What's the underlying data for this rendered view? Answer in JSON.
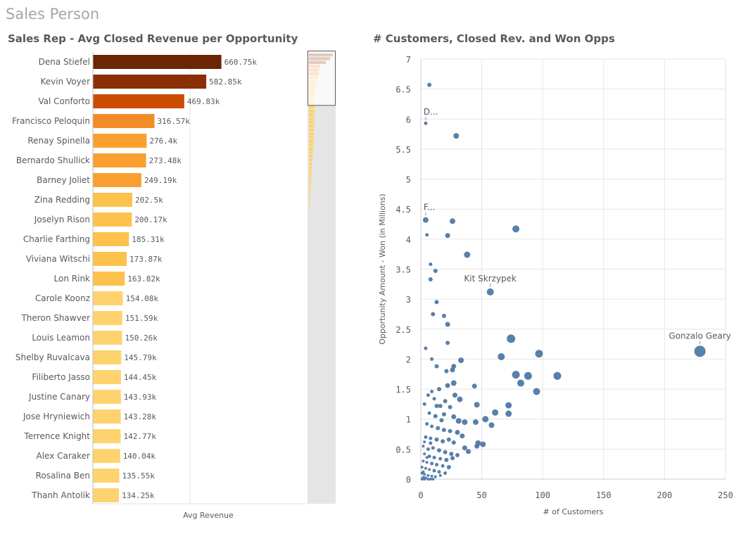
{
  "page": {
    "title": "Sales Person"
  },
  "colors": {
    "bar_ramp": [
      "#6b2503",
      "#8a2e04",
      "#cc4c02",
      "#f28c28",
      "#f9a030",
      "#fdc14d",
      "#fed36f"
    ],
    "scatter_point": "#4e79a7",
    "grid": "#e6e6e6",
    "scroll_track": "#e5e5e5"
  },
  "chart_data": [
    {
      "type": "bar",
      "orientation": "horizontal",
      "title": "Sales Rep - Avg Closed Revenue per Opportunity",
      "xlabel": "Avg Revenue",
      "ylabel": "",
      "xlim": [
        0,
        1100
      ],
      "grid": true,
      "value_unit": "k",
      "categories": [
        "Dena Stiefel",
        "Kevin Voyer",
        "Val Conforto",
        "Francisco Peloquin",
        "Renay Spinella",
        "Bernardo Shullick",
        "Barney Joliet",
        "Zina Redding",
        "Joselyn Rison",
        "Charlie Farthing",
        "Viviana Witschi",
        "Lon Rink",
        "Carole Koonz",
        "Theron Shawver",
        "Louis Leamon",
        "Shelby Ruvalcava",
        "Filiberto Jasso",
        "Justine Canary",
        "Jose Hryniewich",
        "Terrence Knight",
        "Alex Caraker",
        "Rosalina Ben",
        "Thanh Antolik"
      ],
      "values": [
        660.75,
        582.85,
        469.83,
        316.57,
        276.4,
        273.48,
        249.19,
        202.5,
        200.17,
        185.31,
        173.87,
        163.82,
        154.08,
        151.59,
        150.26,
        145.79,
        144.45,
        143.93,
        143.28,
        142.77,
        140.04,
        135.55,
        134.25
      ],
      "value_labels": [
        "660.75k",
        "582.85k",
        "469.83k",
        "316.57k",
        "276.4k",
        "273.48k",
        "249.19k",
        "202.5k",
        "200.17k",
        "185.31k",
        "173.87k",
        "163.82k",
        "154.08k",
        "151.59k",
        "150.26k",
        "145.79k",
        "144.45k",
        "143.93k",
        "143.28k",
        "142.77k",
        "140.04k",
        "135.55k",
        "134.25k"
      ],
      "color_index": [
        0,
        1,
        2,
        3,
        4,
        4,
        4,
        5,
        5,
        5,
        5,
        5,
        6,
        6,
        6,
        6,
        6,
        6,
        6,
        6,
        6,
        6,
        6
      ],
      "scrollbar_visible_fraction": 0.12,
      "scrollbar_overview": [
        1.0,
        0.88,
        0.71,
        0.48,
        0.42,
        0.41,
        0.38,
        0.31,
        0.3,
        0.28,
        0.26,
        0.25,
        0.23,
        0.23,
        0.23,
        0.22,
        0.22,
        0.22,
        0.22,
        0.22,
        0.21,
        0.21,
        0.2,
        0.19,
        0.18,
        0.17,
        0.16,
        0.15,
        0.14,
        0.13,
        0.12,
        0.11,
        0.1,
        0.09,
        0.08,
        0.07,
        0.06,
        0.05,
        0.04,
        0.03,
        0.02,
        0.01
      ]
    },
    {
      "type": "scatter",
      "title": "# Customers, Closed Rev. and Won Opps",
      "xlabel": "# of Customers",
      "ylabel": "Opportunity Amount - Won (in Millions)",
      "xlim": [
        0,
        250
      ],
      "ylim": [
        0,
        7
      ],
      "xticks": [
        0,
        50,
        100,
        150,
        200,
        250
      ],
      "yticks": [
        0,
        0.5,
        1,
        1.5,
        2,
        2.5,
        3,
        3.5,
        4,
        4.5,
        5,
        5.5,
        6,
        6.5,
        7
      ],
      "ytick_labels": [
        "0",
        "0.5",
        "1",
        "1.5",
        "2",
        "2.5",
        "3",
        "3.5",
        "4",
        "4.5",
        "5",
        "5.5",
        "6",
        "6.5",
        "7"
      ],
      "grid": true,
      "points": [
        {
          "x": 229,
          "y": 2.13,
          "size": 8,
          "label": "Gonzalo Geary"
        },
        {
          "x": 57,
          "y": 3.12,
          "size": 5,
          "label": "Kit Skrzypek"
        },
        {
          "x": 4,
          "y": 5.93,
          "size": 2.5,
          "label": "D..."
        },
        {
          "x": 4,
          "y": 4.32,
          "size": 4,
          "label": "F..."
        },
        {
          "x": 7,
          "y": 6.57,
          "size": 3
        },
        {
          "x": 29,
          "y": 5.72,
          "size": 4
        },
        {
          "x": 78,
          "y": 4.17,
          "size": 5
        },
        {
          "x": 26,
          "y": 4.3,
          "size": 4
        },
        {
          "x": 22,
          "y": 4.06,
          "size": 3.5
        },
        {
          "x": 38,
          "y": 3.74,
          "size": 4.5
        },
        {
          "x": 5,
          "y": 4.07,
          "size": 2.5
        },
        {
          "x": 8,
          "y": 3.58,
          "size": 2.5
        },
        {
          "x": 12,
          "y": 3.47,
          "size": 3
        },
        {
          "x": 8,
          "y": 3.33,
          "size": 3
        },
        {
          "x": 13,
          "y": 2.95,
          "size": 3
        },
        {
          "x": 10,
          "y": 2.75,
          "size": 3
        },
        {
          "x": 19,
          "y": 2.72,
          "size": 3
        },
        {
          "x": 22,
          "y": 2.58,
          "size": 3.5
        },
        {
          "x": 74,
          "y": 2.34,
          "size": 6
        },
        {
          "x": 22,
          "y": 2.27,
          "size": 3
        },
        {
          "x": 4,
          "y": 2.18,
          "size": 2.5
        },
        {
          "x": 97,
          "y": 2.09,
          "size": 5.5
        },
        {
          "x": 66,
          "y": 2.04,
          "size": 5
        },
        {
          "x": 33,
          "y": 1.98,
          "size": 4
        },
        {
          "x": 9,
          "y": 2.0,
          "size": 2.5
        },
        {
          "x": 13,
          "y": 1.88,
          "size": 3
        },
        {
          "x": 27,
          "y": 1.88,
          "size": 3.5
        },
        {
          "x": 21,
          "y": 1.8,
          "size": 3
        },
        {
          "x": 26,
          "y": 1.82,
          "size": 3.5
        },
        {
          "x": 78,
          "y": 1.74,
          "size": 5.5
        },
        {
          "x": 88,
          "y": 1.72,
          "size": 5.5
        },
        {
          "x": 112,
          "y": 1.72,
          "size": 5.5
        },
        {
          "x": 82,
          "y": 1.6,
          "size": 5
        },
        {
          "x": 95,
          "y": 1.46,
          "size": 5
        },
        {
          "x": 44,
          "y": 1.55,
          "size": 3.5
        },
        {
          "x": 27,
          "y": 1.6,
          "size": 4
        },
        {
          "x": 22,
          "y": 1.56,
          "size": 3.5
        },
        {
          "x": 15,
          "y": 1.5,
          "size": 3
        },
        {
          "x": 9,
          "y": 1.46,
          "size": 2.5
        },
        {
          "x": 6,
          "y": 1.4,
          "size": 2.5
        },
        {
          "x": 28,
          "y": 1.4,
          "size": 3.5
        },
        {
          "x": 32,
          "y": 1.33,
          "size": 4
        },
        {
          "x": 20,
          "y": 1.3,
          "size": 3
        },
        {
          "x": 11,
          "y": 1.34,
          "size": 2.5
        },
        {
          "x": 3,
          "y": 1.25,
          "size": 2.5
        },
        {
          "x": 13,
          "y": 1.22,
          "size": 3
        },
        {
          "x": 16,
          "y": 1.22,
          "size": 3
        },
        {
          "x": 24,
          "y": 1.2,
          "size": 3
        },
        {
          "x": 46,
          "y": 1.24,
          "size": 4
        },
        {
          "x": 72,
          "y": 1.23,
          "size": 4.5
        },
        {
          "x": 61,
          "y": 1.11,
          "size": 4.5
        },
        {
          "x": 72,
          "y": 1.09,
          "size": 4.5
        },
        {
          "x": 7,
          "y": 1.1,
          "size": 2.5
        },
        {
          "x": 12,
          "y": 1.05,
          "size": 3
        },
        {
          "x": 19,
          "y": 1.08,
          "size": 3
        },
        {
          "x": 27,
          "y": 1.04,
          "size": 3.5
        },
        {
          "x": 53,
          "y": 1.0,
          "size": 4.5
        },
        {
          "x": 31,
          "y": 0.97,
          "size": 4
        },
        {
          "x": 36,
          "y": 0.95,
          "size": 4
        },
        {
          "x": 45,
          "y": 0.95,
          "size": 4
        },
        {
          "x": 58,
          "y": 0.9,
          "size": 4
        },
        {
          "x": 5,
          "y": 0.92,
          "size": 2.5
        },
        {
          "x": 9,
          "y": 0.88,
          "size": 2.5
        },
        {
          "x": 14,
          "y": 0.85,
          "size": 3
        },
        {
          "x": 19,
          "y": 0.82,
          "size": 3
        },
        {
          "x": 24,
          "y": 0.8,
          "size": 3
        },
        {
          "x": 30,
          "y": 0.78,
          "size": 3.5
        },
        {
          "x": 34,
          "y": 0.72,
          "size": 3.5
        },
        {
          "x": 4,
          "y": 0.7,
          "size": 2.5
        },
        {
          "x": 8,
          "y": 0.68,
          "size": 2.5
        },
        {
          "x": 13,
          "y": 0.66,
          "size": 3
        },
        {
          "x": 18,
          "y": 0.63,
          "size": 3
        },
        {
          "x": 23,
          "y": 0.66,
          "size": 3
        },
        {
          "x": 27,
          "y": 0.61,
          "size": 3
        },
        {
          "x": 47,
          "y": 0.6,
          "size": 4
        },
        {
          "x": 51,
          "y": 0.58,
          "size": 4
        },
        {
          "x": 36,
          "y": 0.52,
          "size": 3.5
        },
        {
          "x": 39,
          "y": 0.46,
          "size": 3.5
        },
        {
          "x": 46,
          "y": 0.55,
          "size": 3.5
        },
        {
          "x": 2,
          "y": 0.55,
          "size": 2
        },
        {
          "x": 6,
          "y": 0.5,
          "size": 2.5
        },
        {
          "x": 10,
          "y": 0.52,
          "size": 2.5
        },
        {
          "x": 15,
          "y": 0.48,
          "size": 3
        },
        {
          "x": 20,
          "y": 0.45,
          "size": 3
        },
        {
          "x": 25,
          "y": 0.42,
          "size": 3
        },
        {
          "x": 30,
          "y": 0.4,
          "size": 3
        },
        {
          "x": 3,
          "y": 0.42,
          "size": 2
        },
        {
          "x": 7,
          "y": 0.38,
          "size": 2.5
        },
        {
          "x": 11,
          "y": 0.36,
          "size": 2.5
        },
        {
          "x": 16,
          "y": 0.34,
          "size": 2.5
        },
        {
          "x": 21,
          "y": 0.32,
          "size": 3
        },
        {
          "x": 26,
          "y": 0.35,
          "size": 3
        },
        {
          "x": 2,
          "y": 0.3,
          "size": 2
        },
        {
          "x": 5,
          "y": 0.28,
          "size": 2
        },
        {
          "x": 9,
          "y": 0.26,
          "size": 2.5
        },
        {
          "x": 13,
          "y": 0.24,
          "size": 2.5
        },
        {
          "x": 18,
          "y": 0.22,
          "size": 2.5
        },
        {
          "x": 23,
          "y": 0.2,
          "size": 3
        },
        {
          "x": 1,
          "y": 0.2,
          "size": 2
        },
        {
          "x": 4,
          "y": 0.18,
          "size": 2
        },
        {
          "x": 7,
          "y": 0.16,
          "size": 2
        },
        {
          "x": 11,
          "y": 0.14,
          "size": 2.5
        },
        {
          "x": 15,
          "y": 0.12,
          "size": 2.5
        },
        {
          "x": 20,
          "y": 0.1,
          "size": 2.5
        },
        {
          "x": 1,
          "y": 0.1,
          "size": 2
        },
        {
          "x": 3,
          "y": 0.08,
          "size": 2
        },
        {
          "x": 6,
          "y": 0.06,
          "size": 2
        },
        {
          "x": 9,
          "y": 0.05,
          "size": 2
        },
        {
          "x": 2,
          "y": 0.03,
          "size": 2
        },
        {
          "x": 4,
          "y": 0.02,
          "size": 2
        },
        {
          "x": 12,
          "y": 0.04,
          "size": 2
        },
        {
          "x": 16,
          "y": 0.06,
          "size": 2
        },
        {
          "x": 1,
          "y": 0.0,
          "size": 2
        },
        {
          "x": 3,
          "y": 0.0,
          "size": 2
        },
        {
          "x": 6,
          "y": 0.0,
          "size": 2
        },
        {
          "x": 8,
          "y": 0.0,
          "size": 2
        },
        {
          "x": 10,
          "y": 0.0,
          "size": 2
        },
        {
          "x": 2,
          "y": 0.12,
          "size": 2
        },
        {
          "x": 5,
          "y": 0.36,
          "size": 2
        },
        {
          "x": 3,
          "y": 0.62,
          "size": 2
        },
        {
          "x": 17,
          "y": 0.98,
          "size": 3
        },
        {
          "x": 8,
          "y": 0.6,
          "size": 2.5
        }
      ]
    }
  ]
}
